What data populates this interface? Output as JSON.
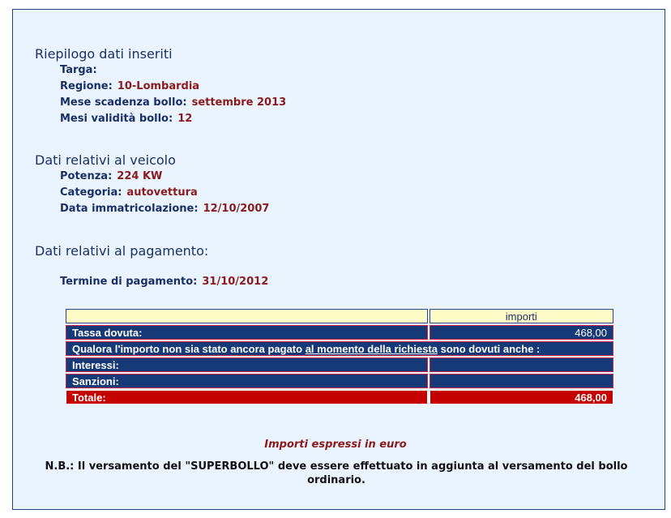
{
  "riepilogo": {
    "title": "Riepilogo dati inseriti",
    "targa_label": "Targa:",
    "targa_value": "",
    "regione_label": "Regione:",
    "regione_value": "10-Lombardia",
    "mese_label": "Mese scadenza bollo:",
    "mese_value": "settembre 2013",
    "mesi_label": "Mesi validità bollo:",
    "mesi_value": "12"
  },
  "veicolo": {
    "title": "Dati relativi al veicolo",
    "potenza_label": "Potenza:",
    "potenza_value": "224 KW",
    "categoria_label": "Categoria:",
    "categoria_value": "autovettura",
    "data_label": "Data immatricolazione:",
    "data_value": "12/10/2007"
  },
  "pagamento": {
    "title": "Dati relativi al pagamento:",
    "termine_label": "Termine di pagamento:",
    "termine_value": "31/10/2012"
  },
  "table": {
    "header_importi": "importi",
    "tassa_label": "Tassa dovuta:",
    "tassa_value": "468,00",
    "qualora_pre": "Qualora l'importo non sia stato ancora pagato ",
    "qualora_link": "al momento della richiesta",
    "qualora_post": " sono dovuti anche :",
    "interessi_label": "Interessi:",
    "interessi_value": "",
    "sanzioni_label": "Sanzioni:",
    "sanzioni_value": "",
    "totale_label": "Totale:",
    "totale_value": "468,00"
  },
  "notes": {
    "euro": "Importi espressi in euro",
    "nb": "N.B.: Il versamento del \"SUPERBOLLO\" deve essere effettuato in aggiunta al versamento del bollo ordinario."
  },
  "colors": {
    "panel_bg": "#eaf4ff",
    "heading": "#1a2f66",
    "value": "#8b1a1a",
    "row_blue": "#163a78",
    "row_red": "#c40000",
    "header_yellow": "#fffcc8"
  }
}
